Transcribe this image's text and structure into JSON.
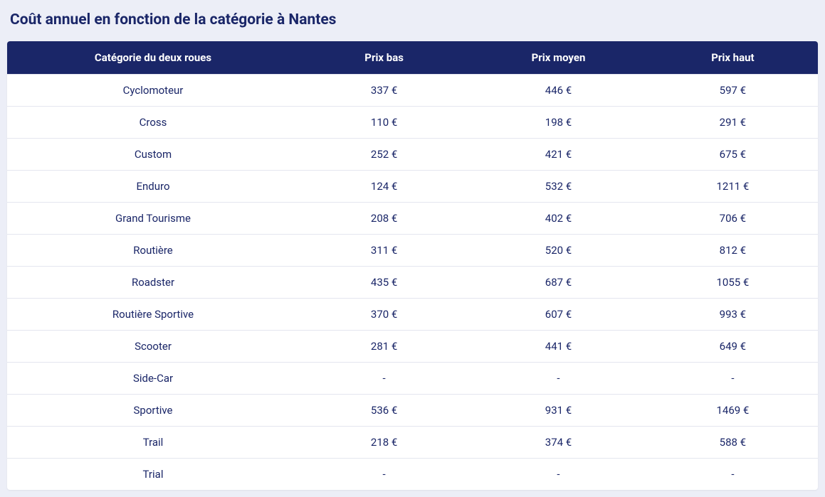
{
  "title": "Coût annuel en fonction de la catégorie à Nantes",
  "colors": {
    "page_bg": "#eceef7",
    "header_bg": "#1a2668",
    "header_text": "#ffffff",
    "cell_text": "#1a2668",
    "row_border": "#e4e6ef",
    "table_bg": "#ffffff"
  },
  "typography": {
    "title_fontsize": 21,
    "title_fontweight": 700,
    "header_fontsize": 15,
    "header_fontweight": 700,
    "cell_fontsize": 15,
    "cell_fontweight": 400
  },
  "table": {
    "type": "table",
    "columns": [
      {
        "key": "category",
        "label": "Catégorie du deux roues",
        "width_pct": 36,
        "align": "center"
      },
      {
        "key": "low",
        "label": "Prix bas",
        "width_pct": 21,
        "align": "center"
      },
      {
        "key": "mid",
        "label": "Prix moyen",
        "width_pct": 22,
        "align": "center"
      },
      {
        "key": "high",
        "label": "Prix haut",
        "width_pct": 21,
        "align": "center"
      }
    ],
    "rows": [
      {
        "category": "Cyclomoteur",
        "low": "337 €",
        "mid": "446 €",
        "high": "597 €"
      },
      {
        "category": "Cross",
        "low": "110 €",
        "mid": "198 €",
        "high": "291 €"
      },
      {
        "category": "Custom",
        "low": "252 €",
        "mid": "421 €",
        "high": "675 €"
      },
      {
        "category": "Enduro",
        "low": "124 €",
        "mid": "532 €",
        "high": "1211 €"
      },
      {
        "category": "Grand Tourisme",
        "low": "208 €",
        "mid": "402 €",
        "high": "706 €"
      },
      {
        "category": "Routière",
        "low": "311 €",
        "mid": "520 €",
        "high": "812 €"
      },
      {
        "category": "Roadster",
        "low": "435 €",
        "mid": "687 €",
        "high": "1055 €"
      },
      {
        "category": "Routière Sportive",
        "low": "370 €",
        "mid": "607 €",
        "high": "993 €"
      },
      {
        "category": "Scooter",
        "low": "281 €",
        "mid": "441 €",
        "high": "649 €"
      },
      {
        "category": "Side-Car",
        "low": "-",
        "mid": "-",
        "high": "-"
      },
      {
        "category": "Sportive",
        "low": "536 €",
        "mid": "931 €",
        "high": "1469 €"
      },
      {
        "category": "Trail",
        "low": "218 €",
        "mid": "374 €",
        "high": "588 €"
      },
      {
        "category": "Trial",
        "low": "-",
        "mid": "-",
        "high": "-"
      }
    ]
  }
}
